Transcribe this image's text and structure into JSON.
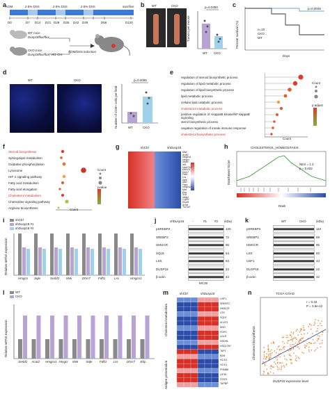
{
  "panels": {
    "a": {
      "label": "a",
      "treatments": [
        "AOM",
        "2.5% DSS",
        "2.5% DSS",
        "2.5% DSS",
        "sacrifice"
      ],
      "days": [
        "D0",
        "D7",
        "D14",
        "D21",
        "D28",
        "D35",
        "D42",
        "D49",
        "D56",
        "D120"
      ],
      "wt_mice": "WT mice",
      "wt_genotype": "Dusp18flox/flox",
      "cko_mice": "CKO mice",
      "cko_genotype": "Dusp18flox/flox; Vil1-Cre",
      "induction": "AOM/DSS induction"
    },
    "b": {
      "label": "b",
      "wt": "WT",
      "cko": "CKO",
      "ylabel": "Tumors per mouse",
      "pvalue": "p=0.0350"
    },
    "c": {
      "label": "c",
      "ylabel": "Percent survival (%)",
      "xlabel": "Days",
      "n": "n=10",
      "wt": "CKO",
      "cko": "WT",
      "pvalue": "p=0.0045"
    },
    "d": {
      "label": "d",
      "wt": "WT",
      "cko": "CKO",
      "ylabel": "Number of CD8+ cells per field",
      "pvalue": "p=0.0085"
    },
    "e": {
      "label": "e",
      "xlabel": "Count",
      "legend_count": "Count",
      "legend_padj": "p.adjust",
      "terms": [
        "regulation of steroid biosynthetic process",
        "regulation of lipid metabolic process",
        "regulation of lipid biosynthetic process",
        "lipid metabolic process",
        "cellular lipid catabolic process",
        "cholesterol metabolic process",
        "positive regulation of I-kappaB kinase/NF-kappaB signaling",
        "sterol biosynthetic process",
        "negative regulation of innate immune response",
        "cholesterol biosynthetic process"
      ]
    },
    "f": {
      "label": "f",
      "xlabel": "Count",
      "legend_count": "Count",
      "legend_p": "pvalue",
      "terms": [
        "Steroid biosynthesis",
        "Sphingolipid metabolism",
        "Oxidative phosphorylation",
        "Lysosome",
        "HIF-1 signaling pathway",
        "Fatty acid metabolism",
        "Fatty acid elongation",
        "Cholesterol metabolism",
        "Chemokine signaling pathway",
        "Arginine biosynthesis"
      ]
    },
    "g": {
      "label": "g",
      "group1": "shCtrl",
      "group2": "shDusp18",
      "genes": [
        "Msd",
        "Acat2",
        "Hmgcs1",
        "Hmgcr",
        "Nsdhl",
        "Idi1",
        "Hsd17b7",
        "Dhcr24",
        "Dhcr7",
        "Fdft1",
        "Lss",
        "Sqle",
        "Mvd",
        "Fdps",
        "Hmgcs2",
        "Mvk",
        "Ebp",
        "Scd",
        "Insig1",
        "Cyp51",
        "Elovl6",
        "Sc5d",
        "Tm7sf2"
      ]
    },
    "h": {
      "label": "h",
      "title": "CHOLESTEROL_HOMEOSTASIS",
      "ylabel": "Enrichment Score",
      "xlabel": "Rank",
      "nes": "NES = 1.4",
      "p": "p = 0.022"
    },
    "i": {
      "label": "i",
      "legend": [
        "shCtrl",
        "shDusp18 #1",
        "shDusp18 #2"
      ],
      "ylabel": "Relative mRNA expression",
      "genes": [
        "Hmgcs",
        "Sqle",
        "Srebf2",
        "Mvk",
        "Dhcr7",
        "Fdft1",
        "Lss",
        "Hmgcs1"
      ]
    },
    "j": {
      "label": "j",
      "header": "shDusp18",
      "cols": [
        "-",
        "#1",
        "#2"
      ],
      "kda": "(kDa)",
      "cell": "MC38",
      "bands": [
        "pSREBP2",
        "SREBP2",
        "HMGCR",
        "SQLE",
        "LSS",
        "DUSP18",
        "β-actin"
      ],
      "sizes": [
        "120",
        "72",
        "95",
        "64",
        "83",
        "22",
        "42"
      ]
    },
    "k": {
      "label": "k",
      "wt": "WT",
      "cko": "CKO",
      "kda": "(kDa)",
      "bands": [
        "pSREBP2",
        "SREBP2",
        "HMGCR",
        "LSS",
        "USF1",
        "DUSP18",
        "β-actin"
      ],
      "sizes": [
        "110",
        "68",
        "95",
        "83",
        "43",
        "22",
        "42"
      ]
    },
    "l": {
      "label": "l",
      "legend": [
        "WT",
        "CKO"
      ],
      "ylabel": "Relative mRNA expression",
      "genes": [
        "Srebf2",
        "Acat2",
        "Hmgcs1",
        "Hmgcr",
        "Mvk",
        "Sqle",
        "Fdft1",
        "Lss",
        "Dhcr7",
        "Ebp"
      ]
    },
    "m": {
      "label": "m",
      "group1": "shCtrl",
      "group2": "shDusp18",
      "side1": "Cholesterol metabolism",
      "side2": "Antigen presentation",
      "genes": [
        "USF1",
        "SREBF2",
        "HMGCR",
        "LSS",
        "SQLE",
        "ACAT2",
        "MVD",
        "FDPS",
        "LDLR",
        "NSDHL",
        "HSD17B7",
        "TAP1",
        "B2M",
        "H2-D1",
        "H2-K1",
        "PSMB8",
        "LIF35",
        "STAT1",
        "TAPBP"
      ]
    },
    "n": {
      "label": "n",
      "title": "TCGA-COAD",
      "r": "r = 0.33",
      "p": "P = 3.9e-12",
      "ylabel": "Cholesterol biosynthesis",
      "xlabel": "DUSP18 expression level"
    }
  }
}
